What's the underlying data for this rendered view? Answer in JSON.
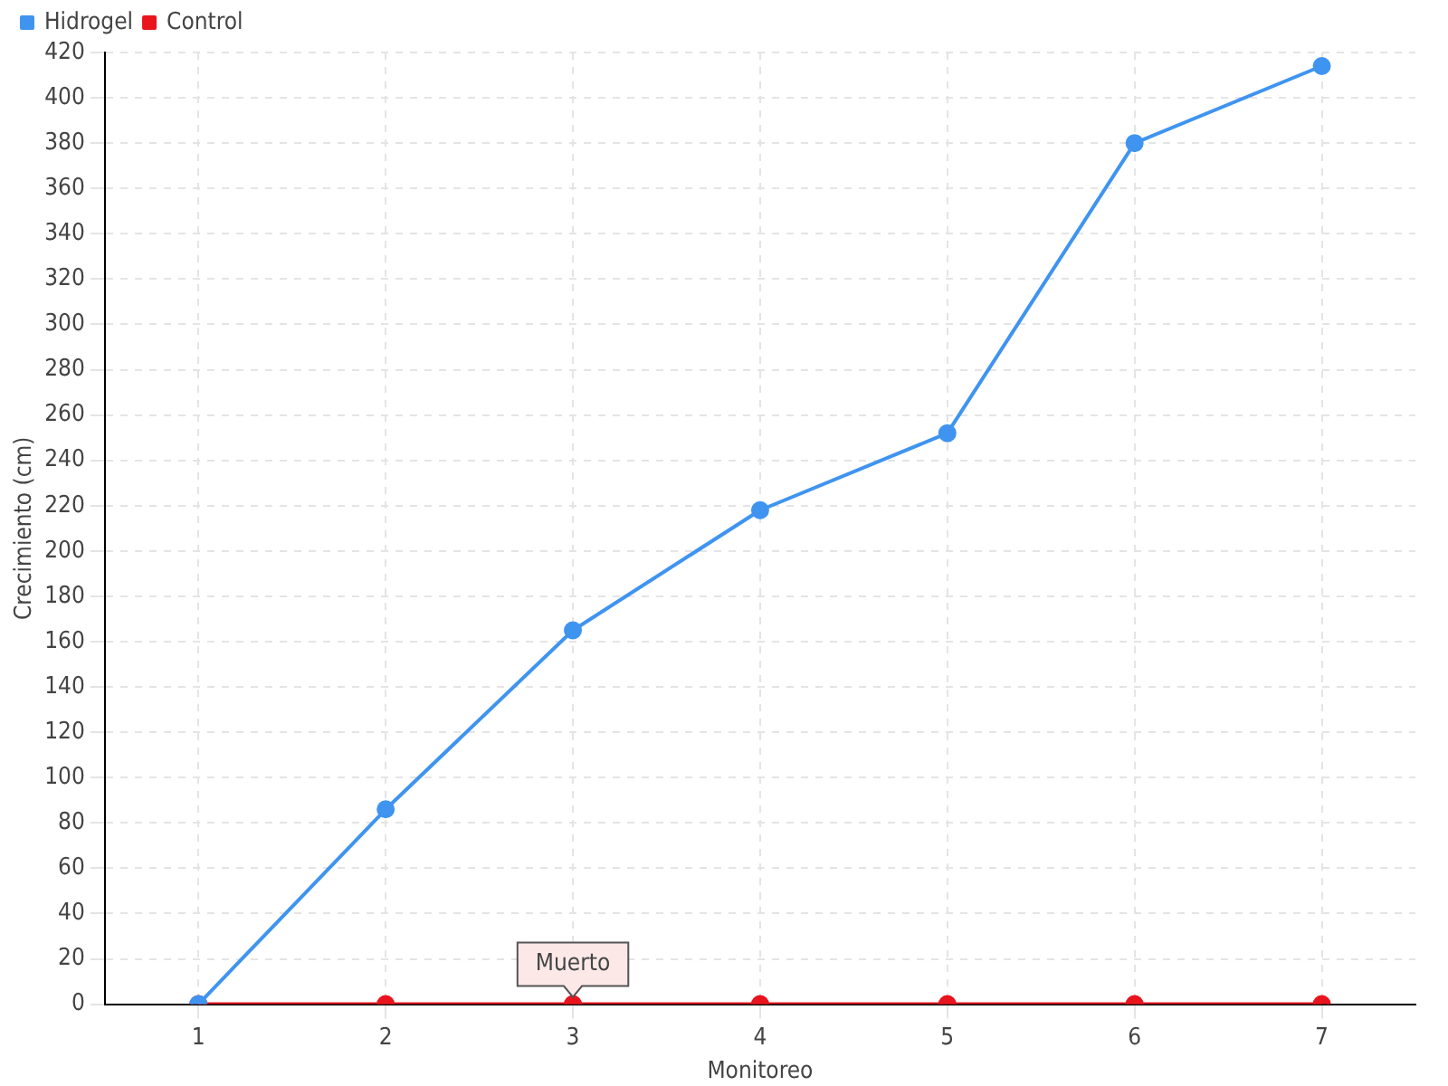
{
  "chart_data": {
    "type": "line",
    "xlabel": "Monitoreo",
    "ylabel": "Crecimiento (cm)",
    "categories": [
      "1",
      "2",
      "3",
      "4",
      "5",
      "6",
      "7"
    ],
    "series": [
      {
        "name": "Hidrogel",
        "color": "#3f94f0",
        "values": [
          0,
          86,
          165,
          218,
          252,
          380,
          414
        ]
      },
      {
        "name": "Control",
        "color": "#e8141e",
        "values": [
          0,
          0,
          0,
          0,
          0,
          0,
          0
        ]
      }
    ],
    "ylim": [
      0,
      420
    ],
    "yticks": [
      0,
      20,
      40,
      60,
      80,
      100,
      120,
      140,
      160,
      180,
      200,
      220,
      240,
      260,
      280,
      300,
      320,
      340,
      360,
      380,
      400,
      420
    ],
    "grid": true,
    "legend": "top left",
    "marker": "circle",
    "line_style": "solid",
    "annotations": [
      {
        "text": "Muerto",
        "x": "3",
        "y": 0
      }
    ]
  }
}
